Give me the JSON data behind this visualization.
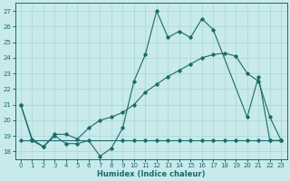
{
  "xlabel": "Humidex (Indice chaleur)",
  "bg_color": "#c8eaea",
  "line_color": "#1a6b6b",
  "grid_color": "#b0d8d8",
  "xlim": [
    -0.5,
    23.5
  ],
  "ylim": [
    17.5,
    27.5
  ],
  "xticks": [
    0,
    1,
    2,
    3,
    4,
    5,
    6,
    7,
    8,
    9,
    10,
    11,
    12,
    13,
    14,
    15,
    16,
    17,
    18,
    19,
    20,
    21,
    22,
    23
  ],
  "yticks": [
    18,
    19,
    20,
    21,
    22,
    23,
    24,
    25,
    26,
    27
  ],
  "line1_x": [
    0,
    1,
    2,
    3,
    4,
    5,
    6,
    7,
    8,
    9,
    10,
    11,
    12,
    13,
    14,
    15,
    16,
    17,
    20,
    21,
    22,
    23
  ],
  "line1_y": [
    21.0,
    18.7,
    18.3,
    19.0,
    18.5,
    18.5,
    18.7,
    17.7,
    18.2,
    19.5,
    22.5,
    24.2,
    27.0,
    25.3,
    25.7,
    25.3,
    26.5,
    25.8,
    20.2,
    22.8,
    18.7,
    18.7
  ],
  "line2_x": [
    0,
    1,
    2,
    3,
    4,
    5,
    6,
    7,
    8,
    9,
    10,
    11,
    12,
    13,
    14,
    15,
    16,
    17,
    18,
    19,
    20,
    21,
    22,
    23
  ],
  "line2_y": [
    21.0,
    18.8,
    18.3,
    19.1,
    19.1,
    18.8,
    19.5,
    20.0,
    20.2,
    20.5,
    21.0,
    21.8,
    22.3,
    22.8,
    23.2,
    23.6,
    24.0,
    24.2,
    24.3,
    24.1,
    23.0,
    22.5,
    20.2,
    18.7
  ],
  "line3_x": [
    0,
    1,
    9,
    10,
    11,
    12,
    13,
    14,
    15,
    16,
    17,
    18,
    19,
    20,
    21,
    22,
    23
  ],
  "line3_y": [
    18.7,
    18.7,
    18.7,
    18.7,
    18.7,
    18.7,
    18.7,
    18.7,
    18.7,
    18.7,
    18.7,
    18.7,
    18.7,
    18.7,
    18.7,
    18.7,
    18.7
  ],
  "figsize": [
    3.2,
    2.0
  ],
  "dpi": 100
}
